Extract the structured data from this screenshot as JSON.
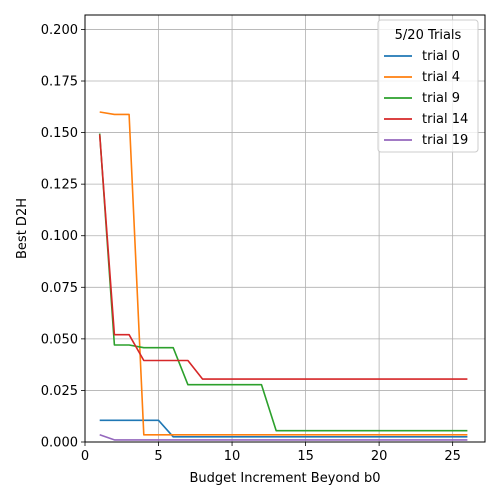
{
  "chart_data": {
    "type": "line",
    "xlabel": "Budget Increment Beyond b0",
    "ylabel": "Best D2H",
    "xlim": [
      0,
      27.2
    ],
    "ylim": [
      0,
      0.207
    ],
    "x_ticks": [
      0,
      5,
      10,
      15,
      20,
      25
    ],
    "x_tick_labels": [
      "0",
      "5",
      "10",
      "15",
      "20",
      "25"
    ],
    "y_ticks": [
      0,
      0.025,
      0.05,
      0.075,
      0.1,
      0.125,
      0.15,
      0.175,
      0.2
    ],
    "y_tick_labels": [
      "0.000",
      "0.025",
      "0.050",
      "0.075",
      "0.100",
      "0.125",
      "0.150",
      "0.175",
      "0.200"
    ],
    "grid": true,
    "legend_title": "5/20 Trials",
    "legend_position": "top-right",
    "series": [
      {
        "name": "trial 0",
        "color": "#1f77b4",
        "x": [
          1,
          2,
          3,
          4,
          5,
          6,
          7,
          8,
          9,
          10,
          11,
          12,
          13,
          14,
          15,
          16,
          17,
          18,
          19,
          20,
          21,
          22,
          23,
          24,
          25,
          26
        ],
        "y": [
          0.0105,
          0.0105,
          0.0105,
          0.0105,
          0.0105,
          0.0025,
          0.0025,
          0.0025,
          0.0025,
          0.0025,
          0.0025,
          0.0025,
          0.0025,
          0.0025,
          0.0025,
          0.0025,
          0.0025,
          0.0025,
          0.0025,
          0.0025,
          0.0025,
          0.0025,
          0.0025,
          0.0025,
          0.0025,
          0.0025
        ]
      },
      {
        "name": "trial 4",
        "color": "#ff7f0e",
        "x": [
          1,
          2,
          3,
          4,
          5,
          6,
          7,
          8,
          9,
          10,
          11,
          12,
          13,
          14,
          15,
          16,
          17,
          18,
          19,
          20,
          21,
          22,
          23,
          24,
          25,
          26
        ],
        "y": [
          0.16,
          0.1588,
          0.1588,
          0.0035,
          0.0035,
          0.0035,
          0.0035,
          0.0035,
          0.0035,
          0.0035,
          0.0035,
          0.0035,
          0.0035,
          0.0035,
          0.0035,
          0.0035,
          0.0035,
          0.0035,
          0.0035,
          0.0035,
          0.0035,
          0.0035,
          0.0035,
          0.0035,
          0.0035,
          0.0035
        ]
      },
      {
        "name": "trial 9",
        "color": "#2ca02c",
        "x": [
          1,
          2,
          3,
          4,
          5,
          6,
          7,
          8,
          9,
          10,
          11,
          12,
          13,
          14,
          15,
          16,
          17,
          18,
          19,
          20,
          21,
          22,
          23,
          24,
          25,
          26
        ],
        "y": [
          0.1495,
          0.047,
          0.047,
          0.0457,
          0.0457,
          0.0457,
          0.0278,
          0.0278,
          0.0278,
          0.0278,
          0.0278,
          0.0278,
          0.0055,
          0.0055,
          0.0055,
          0.0055,
          0.0055,
          0.0055,
          0.0055,
          0.0055,
          0.0055,
          0.0055,
          0.0055,
          0.0055,
          0.0055,
          0.0055
        ]
      },
      {
        "name": "trial 14",
        "color": "#d62728",
        "x": [
          1,
          2,
          3,
          4,
          5,
          6,
          7,
          8,
          9,
          10,
          11,
          12,
          13,
          14,
          15,
          16,
          17,
          18,
          19,
          20,
          21,
          22,
          23,
          24,
          25,
          26
        ],
        "y": [
          0.149,
          0.052,
          0.052,
          0.0395,
          0.0395,
          0.0395,
          0.0395,
          0.0305,
          0.0305,
          0.0305,
          0.0305,
          0.0305,
          0.0305,
          0.0305,
          0.0305,
          0.0305,
          0.0305,
          0.0305,
          0.0305,
          0.0305,
          0.0305,
          0.0305,
          0.0305,
          0.0305,
          0.0305,
          0.0305
        ]
      },
      {
        "name": "trial 19",
        "color": "#9467bd",
        "x": [
          1,
          2,
          3,
          4,
          5,
          6,
          7,
          8,
          9,
          10,
          11,
          12,
          13,
          14,
          15,
          16,
          17,
          18,
          19,
          20,
          21,
          22,
          23,
          24,
          25,
          26
        ],
        "y": [
          0.0035,
          0.001,
          0.001,
          0.001,
          0.001,
          0.001,
          0.001,
          0.001,
          0.001,
          0.001,
          0.001,
          0.001,
          0.001,
          0.001,
          0.001,
          0.001,
          0.001,
          0.001,
          0.001,
          0.001,
          0.001,
          0.001,
          0.001,
          0.001,
          0.001,
          0.001
        ]
      }
    ]
  }
}
